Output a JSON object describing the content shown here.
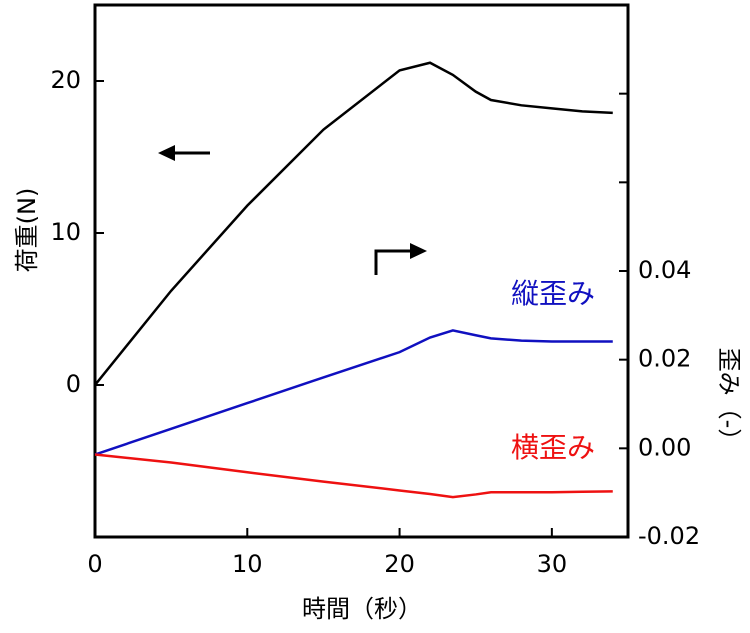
{
  "chart_data": {
    "type": "line",
    "x_label": "時間（秒）",
    "y_label": "荷重(N)",
    "y2_label": "歪み（-）",
    "x": [
      0,
      5,
      10,
      15,
      20,
      22,
      23.5,
      25,
      26,
      28,
      30,
      32,
      34
    ],
    "xlim": [
      0,
      35
    ],
    "xticks": [
      0,
      10,
      20,
      30
    ],
    "ylim": [
      -10,
      25
    ],
    "yticks": [
      0,
      10,
      20
    ],
    "y2lim": [
      -0.02,
      0.1
    ],
    "y2ticks": [
      {
        "value": -0.02,
        "label": "-0.02"
      },
      {
        "value": 0,
        "label": "0.00"
      },
      {
        "value": 0.02,
        "label": "0.02"
      },
      {
        "value": 0.04,
        "label": "0.04"
      }
    ],
    "y2minor_ticks": [
      0.06,
      0.08
    ],
    "series": [
      {
        "color": "#000000",
        "values": [
          0,
          6.2,
          11.8,
          16.8,
          20.7,
          21.2,
          20.4,
          19.3,
          18.75,
          18.4,
          18.2,
          18.0,
          17.9
        ]
      },
      {
        "name": "縦歪み",
        "color": "#1010c0",
        "axis": "y2",
        "values": [
          -0.0014,
          0.0044,
          0.0102,
          0.016,
          0.0217,
          0.025,
          0.0266,
          0.0255,
          0.0248,
          0.0243,
          0.0241,
          0.0241,
          0.0241
        ]
      },
      {
        "name": "横歪み",
        "color": "#ee1111",
        "axis": "y2",
        "values": [
          -0.0014,
          -0.0032,
          -0.0054,
          -0.0075,
          -0.0095,
          -0.0103,
          -0.011,
          -0.0104,
          -0.0099,
          -0.0099,
          -0.0099,
          -0.0098,
          -0.0097
        ]
      }
    ]
  }
}
